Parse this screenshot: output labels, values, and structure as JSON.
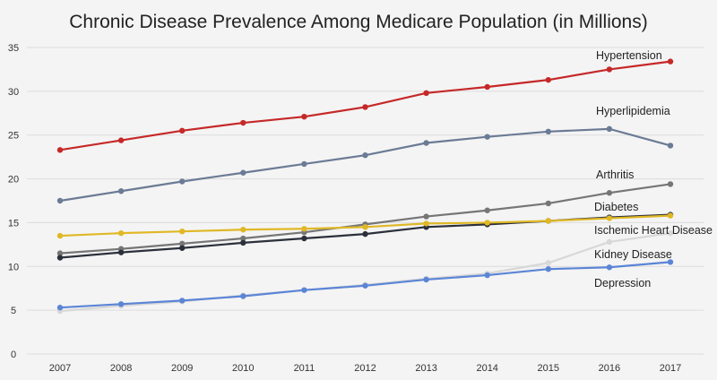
{
  "chart_data": {
    "type": "line",
    "title": "Chronic Disease Prevalence Among Medicare Population (in Millions)",
    "xlabel": "",
    "ylabel": "",
    "x": [
      "2007",
      "2008",
      "2009",
      "2010",
      "2011",
      "2012",
      "2013",
      "2014",
      "2015",
      "2016",
      "2017"
    ],
    "ylim": [
      0,
      35
    ],
    "yticks": [
      0,
      5,
      10,
      15,
      20,
      25,
      30,
      35
    ],
    "grid": true,
    "legend": "inline labels at line ends",
    "series": [
      {
        "name": "Hypertension",
        "color": "#c62828",
        "values": [
          23.3,
          24.4,
          25.5,
          26.4,
          27.1,
          28.2,
          29.8,
          30.5,
          31.3,
          32.5,
          33.4
        ]
      },
      {
        "name": "Hyperlipidemia",
        "color": "#6b7b95",
        "values": [
          17.5,
          18.6,
          19.7,
          20.7,
          21.7,
          22.7,
          24.1,
          24.8,
          25.4,
          25.7,
          23.8
        ]
      },
      {
        "name": "Arthritis",
        "color": "#767676",
        "values": [
          11.5,
          12.0,
          12.6,
          13.2,
          13.9,
          14.8,
          15.7,
          16.4,
          17.2,
          18.4,
          19.4
        ]
      },
      {
        "name": "Diabetes",
        "color": "#2b303b",
        "values": [
          11.0,
          11.6,
          12.1,
          12.7,
          13.2,
          13.7,
          14.5,
          14.8,
          15.2,
          15.6,
          15.9
        ]
      },
      {
        "name": "Ischemic Heart Disease",
        "color": "#e0b826",
        "values": [
          13.5,
          13.8,
          14.0,
          14.2,
          14.3,
          14.5,
          14.9,
          15.0,
          15.2,
          15.5,
          15.8
        ]
      },
      {
        "name": "Kidney Disease",
        "color": "#d8d8d8",
        "values": [
          4.9,
          5.5,
          6.0,
          6.7,
          7.3,
          7.9,
          8.6,
          9.2,
          10.4,
          12.8,
          13.8
        ]
      },
      {
        "name": "Depression",
        "color": "#5b85d6",
        "values": [
          5.3,
          5.7,
          6.1,
          6.6,
          7.3,
          7.8,
          8.5,
          9.0,
          9.7,
          9.9,
          10.5
        ]
      }
    ]
  }
}
